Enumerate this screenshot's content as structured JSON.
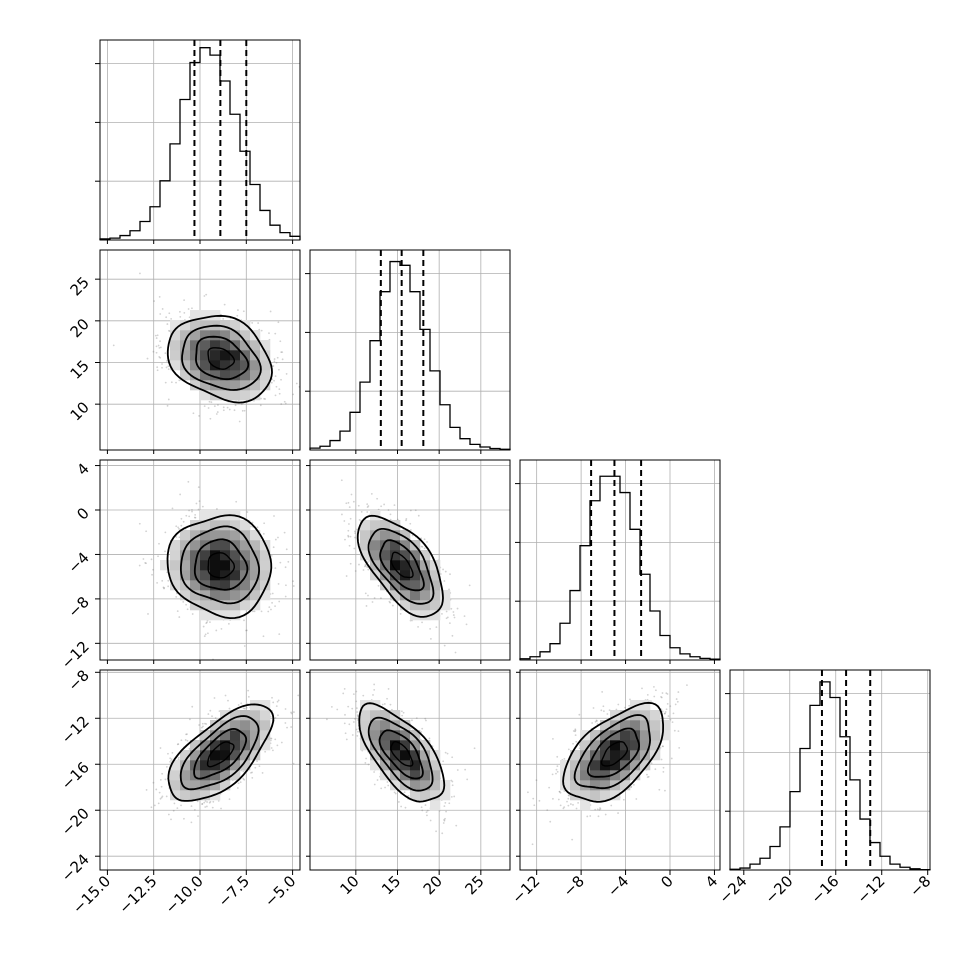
{
  "chart_data": {
    "type": "corner",
    "title": "",
    "parameters": [
      {
        "label": "",
        "range": [
          -15.4,
          -4.6
        ],
        "median": -8.9,
        "q16": -10.3,
        "q84": -7.5,
        "corr_ticks": [
          {
            "v": -15.0,
            "t": "−15.0"
          },
          {
            "v": -12.5,
            "t": "−12.5"
          },
          {
            "v": -10.0,
            "t": "−10.0"
          },
          {
            "v": -7.5,
            "t": "−7.5"
          },
          {
            "v": -5.0,
            "t": "−5.0"
          }
        ],
        "row_ticks": [],
        "hist_counts": [
          0.3,
          0.5,
          1.2,
          2.5,
          5,
          9,
          16,
          26,
          38,
          48,
          52,
          50,
          43,
          34,
          24,
          15,
          8,
          4,
          2,
          1
        ],
        "hist_levels": 12,
        "hist_max": 53
      },
      {
        "label": "",
        "range": [
          4.5,
          28.5
        ],
        "median": 15.5,
        "q16": 13.0,
        "q84": 18.1,
        "corr_ticks": [
          {
            "v": 10,
            "t": "10"
          },
          {
            "v": 15,
            "t": "15"
          },
          {
            "v": 20,
            "t": "20"
          },
          {
            "v": 25,
            "t": "25"
          }
        ],
        "row_ticks": [
          {
            "v": 10,
            "t": "10"
          },
          {
            "v": 15,
            "t": "15"
          },
          {
            "v": 20,
            "t": "20"
          },
          {
            "v": 25,
            "t": "25"
          }
        ],
        "hist_counts": [
          0.5,
          1,
          2.5,
          5,
          10,
          18,
          29,
          42,
          50,
          49,
          42,
          32,
          21,
          12,
          6,
          3,
          1.5,
          0.8,
          0.4,
          0.2
        ],
        "hist_levels": 12,
        "hist_max": 52
      },
      {
        "label": "",
        "range": [
          -13.5,
          4.5
        ],
        "median": -5.0,
        "q16": -7.1,
        "q84": -2.6,
        "corr_ticks": [
          {
            "v": -12,
            "t": "−12"
          },
          {
            "v": -8,
            "t": "−8"
          },
          {
            "v": -4,
            "t": "−4"
          },
          {
            "v": 0,
            "t": "0"
          },
          {
            "v": 4,
            "t": "4"
          }
        ],
        "row_ticks": [
          {
            "v": -12,
            "t": "−12"
          },
          {
            "v": -8,
            "t": "−8"
          },
          {
            "v": -4,
            "t": "−4"
          },
          {
            "v": 0,
            "t": "0"
          },
          {
            "v": 4,
            "t": "4"
          }
        ],
        "hist_counts": [
          0.3,
          0.8,
          2,
          4,
          9,
          17,
          28,
          39,
          45,
          45,
          41,
          32,
          21,
          12,
          6,
          3,
          1.5,
          0.8,
          0.4,
          0.2
        ],
        "hist_levels": 12,
        "hist_max": 48
      },
      {
        "label": "",
        "range": [
          -25.2,
          -7.8
        ],
        "median": -15.1,
        "q16": -17.2,
        "q84": -13.0,
        "corr_ticks": [
          {
            "v": -24,
            "t": "−24"
          },
          {
            "v": -20,
            "t": "−20"
          },
          {
            "v": -16,
            "t": "−16"
          },
          {
            "v": -12,
            "t": "−12"
          },
          {
            "v": -8,
            "t": "−8"
          }
        ],
        "row_ticks": [
          {
            "v": -24,
            "t": "−24"
          },
          {
            "v": -20,
            "t": "−20"
          },
          {
            "v": -16,
            "t": "−16"
          },
          {
            "v": -12,
            "t": "−12"
          },
          {
            "v": -8,
            "t": "−8"
          }
        ],
        "hist_counts": [
          0.2,
          0.5,
          1.5,
          3,
          6,
          11,
          20,
          31,
          42,
          48,
          44,
          34,
          23,
          13,
          7,
          3.5,
          1.5,
          0.7,
          0.3,
          0.1
        ],
        "hist_levels": 12,
        "hist_max": 50
      }
    ],
    "pairs": [
      {
        "row": 1,
        "col": 0,
        "rho": -0.25
      },
      {
        "row": 2,
        "col": 0,
        "rho": -0.05
      },
      {
        "row": 2,
        "col": 1,
        "rho": -0.6
      },
      {
        "row": 3,
        "col": 0,
        "rho": 0.65
      },
      {
        "row": 3,
        "col": 1,
        "rho": -0.65
      },
      {
        "row": 3,
        "col": 2,
        "rho": 0.55
      }
    ],
    "contour_sigmas": [
      0.5,
      1.0,
      1.5,
      2.0
    ],
    "grid": true,
    "colors": {
      "line": "#000000",
      "grid": "#b0b0b0",
      "points": "#7f7f7f",
      "fill_dark": "#000000",
      "fill_light": "#ffffff"
    }
  }
}
